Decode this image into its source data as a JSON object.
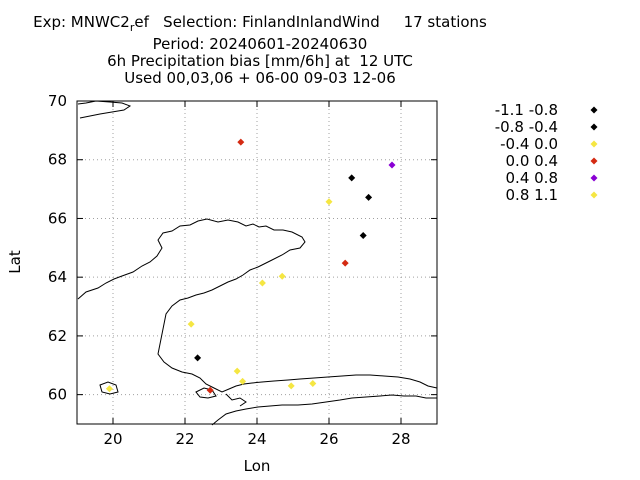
{
  "title": {
    "line1": "Exp: MNWC2",
    "line1_sub": "r",
    "line1_rest": "ef   Selection: FinlandInlandWind     17 stations",
    "line2": "Period: 20240601-20240630",
    "line3": "6h Precipitation bias [mm/6h] at  12 UTC",
    "line4": "Used 00,03,06 + 06-00 09-03 12-06"
  },
  "chart_data": {
    "type": "scatter",
    "xlabel": "Lon",
    "ylabel": "Lat",
    "xlim": [
      19,
      29
    ],
    "ylim": [
      59,
      70
    ],
    "xticks": [
      20,
      22,
      24,
      26,
      28
    ],
    "yticks": [
      60,
      62,
      64,
      66,
      68,
      70
    ],
    "grid": true,
    "legend_position": "right",
    "classes": [
      {
        "label": "-1.1 -0.8",
        "color": "#000000"
      },
      {
        "label": "-0.8 -0.4",
        "color": "#000000"
      },
      {
        "label": "-0.4 0.0",
        "color": "#f5e642"
      },
      {
        "label": "0.0 0.4",
        "color": "#d42a12"
      },
      {
        "label": "0.4 0.8",
        "color": "#8a00d4"
      },
      {
        "label": "0.8 1.1",
        "color": "#f5e642"
      }
    ],
    "points": [
      {
        "lon": 23.55,
        "lat": 68.6,
        "class": 3
      },
      {
        "lon": 27.75,
        "lat": 67.82,
        "class": 4
      },
      {
        "lon": 26.63,
        "lat": 67.38,
        "class": 1
      },
      {
        "lon": 27.1,
        "lat": 66.72,
        "class": 1
      },
      {
        "lon": 26.0,
        "lat": 66.57,
        "class": 2
      },
      {
        "lon": 26.95,
        "lat": 65.42,
        "class": 1
      },
      {
        "lon": 26.45,
        "lat": 64.48,
        "class": 3
      },
      {
        "lon": 24.7,
        "lat": 64.03,
        "class": 2
      },
      {
        "lon": 24.15,
        "lat": 63.8,
        "class": 2
      },
      {
        "lon": 22.17,
        "lat": 62.4,
        "class": 2
      },
      {
        "lon": 22.35,
        "lat": 61.25,
        "class": 1
      },
      {
        "lon": 23.45,
        "lat": 60.8,
        "class": 2
      },
      {
        "lon": 23.6,
        "lat": 60.45,
        "class": 2
      },
      {
        "lon": 25.55,
        "lat": 60.38,
        "class": 2
      },
      {
        "lon": 24.95,
        "lat": 60.3,
        "class": 2
      },
      {
        "lon": 19.9,
        "lat": 60.2,
        "class": 2
      },
      {
        "lon": 22.7,
        "lat": 60.15,
        "class": 3
      }
    ]
  }
}
